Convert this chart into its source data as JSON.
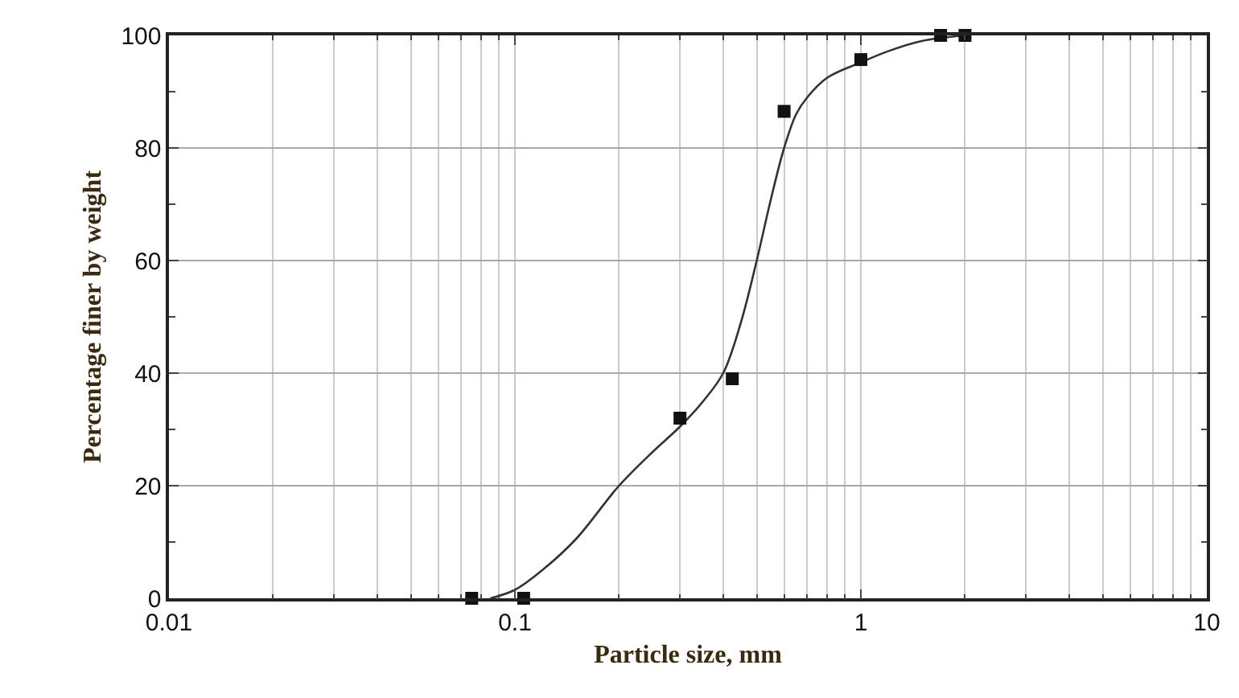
{
  "chart_data": {
    "type": "scatter",
    "xlabel": "Particle size, mm",
    "ylabel": "Percentage finer by weight",
    "log": "x",
    "xlim": [
      0.01,
      10
    ],
    "xticks": [
      0.01,
      0.1,
      1,
      10
    ],
    "ylim": [
      0,
      100
    ],
    "yticks": [
      0,
      20,
      40,
      60,
      80,
      100
    ],
    "grid": true,
    "marker": "square",
    "series": [
      {
        "type": "line",
        "color": "#333333",
        "line_style": "solid",
        "marker": "none",
        "x": [
          0.085,
          0.1,
          0.12,
          0.15,
          0.2,
          0.25,
          0.3,
          0.35,
          0.4,
          0.45,
          0.5,
          0.55,
          0.6,
          0.65,
          0.7,
          0.8,
          1.0,
          1.2,
          1.5,
          2.0
        ],
        "values": [
          0,
          1.5,
          5,
          10.5,
          20,
          26,
          30.5,
          35,
          40,
          49,
          60,
          71,
          80,
          86,
          89,
          92.5,
          95.2,
          97.2,
          99,
          100
        ]
      },
      {
        "color": "#111111",
        "x": [
          0.075,
          0.106,
          0.3,
          0.425,
          0.6,
          1.0,
          1.7,
          2.0
        ],
        "values": [
          0,
          0,
          32,
          39,
          86.5,
          95.7,
          100,
          100
        ]
      }
    ]
  }
}
